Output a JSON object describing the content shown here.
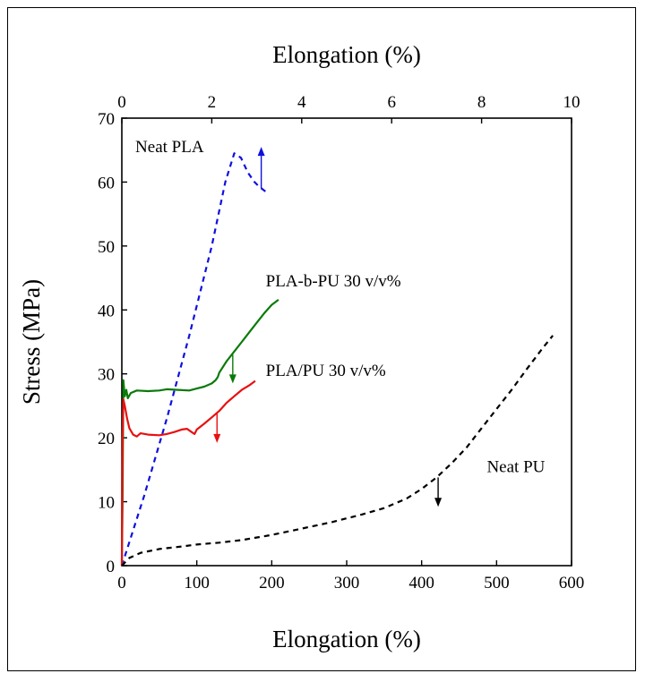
{
  "chart_data": {
    "type": "line",
    "xlabel": "Elongation (%)",
    "top_xlabel": "Elongation (%)",
    "ylabel": "Stress (MPa)",
    "xlim": [
      0,
      600
    ],
    "top_xlim": [
      0,
      10
    ],
    "ylim": [
      0,
      70
    ],
    "x_ticks": [
      0,
      100,
      200,
      300,
      400,
      500,
      600
    ],
    "top_x_ticks": [
      0,
      2,
      4,
      6,
      8,
      10
    ],
    "y_ticks": [
      0,
      10,
      20,
      30,
      40,
      50,
      60,
      70
    ],
    "grid": false,
    "series": [
      {
        "name": "Neat PLA",
        "axis": "top",
        "color": "#1010e0",
        "dash": "dashed",
        "label_pos": [
          0.3,
          65.5
        ],
        "points": [
          [
            0,
            0
          ],
          [
            0.5,
            11
          ],
          [
            1,
            23
          ],
          [
            1.5,
            36
          ],
          [
            2,
            50
          ],
          [
            2.3,
            60
          ],
          [
            2.5,
            64.5
          ],
          [
            2.65,
            63.8
          ],
          [
            2.8,
            61.5
          ],
          [
            2.95,
            60
          ],
          [
            3.05,
            59.3
          ],
          [
            3.2,
            58.5
          ]
        ],
        "arrow": [
          3.1,
          59,
          65.5
        ]
      },
      {
        "name": "PLA-b-PU 30 v/v%",
        "axis": "bottom",
        "color": "#0a7a0a",
        "dash": "solid",
        "label_pos": [
          192,
          44.5
        ],
        "points": [
          [
            0,
            0
          ],
          [
            1,
            10
          ],
          [
            2,
            29
          ],
          [
            4,
            26.5
          ],
          [
            6,
            27.5
          ],
          [
            8,
            26.2
          ],
          [
            12,
            27
          ],
          [
            20,
            27.4
          ],
          [
            35,
            27.3
          ],
          [
            50,
            27.4
          ],
          [
            60,
            27.6
          ],
          [
            75,
            27.5
          ],
          [
            90,
            27.4
          ],
          [
            100,
            27.7
          ],
          [
            110,
            28
          ],
          [
            120,
            28.5
          ],
          [
            125,
            29
          ],
          [
            128,
            29.5
          ],
          [
            130,
            30.2
          ],
          [
            140,
            32
          ],
          [
            150,
            33.5
          ],
          [
            160,
            35
          ],
          [
            170,
            36.5
          ],
          [
            180,
            38
          ],
          [
            190,
            39.5
          ],
          [
            200,
            40.8
          ],
          [
            209,
            41.6
          ]
        ],
        "arrow": [
          148,
          33,
          28.5
        ]
      },
      {
        "name": "PLA/PU 30 v/v%",
        "axis": "bottom",
        "color": "#e81010",
        "dash": "solid",
        "label_pos": [
          192,
          30.5
        ],
        "points": [
          [
            0,
            0
          ],
          [
            1,
            20
          ],
          [
            2,
            26
          ],
          [
            4,
            25
          ],
          [
            7,
            23
          ],
          [
            10,
            21.5
          ],
          [
            15,
            20.5
          ],
          [
            20,
            20.2
          ],
          [
            25,
            20.7
          ],
          [
            35,
            20.5
          ],
          [
            50,
            20.4
          ],
          [
            60,
            20.6
          ],
          [
            70,
            20.9
          ],
          [
            80,
            21.3
          ],
          [
            87,
            21.4
          ],
          [
            93,
            20.9
          ],
          [
            97,
            20.6
          ],
          [
            100,
            21.3
          ],
          [
            110,
            22.2
          ],
          [
            120,
            23.2
          ],
          [
            130,
            24.2
          ],
          [
            140,
            25.5
          ],
          [
            150,
            26.5
          ],
          [
            160,
            27.5
          ],
          [
            170,
            28.2
          ],
          [
            178,
            28.9
          ]
        ],
        "arrow": [
          127,
          23.8,
          19.2
        ]
      },
      {
        "name": "Neat PU",
        "axis": "bottom",
        "color": "#000000",
        "dash": "dashed",
        "label_pos": [
          487,
          15.5
        ],
        "points": [
          [
            0,
            0
          ],
          [
            10,
            1.2
          ],
          [
            25,
            2
          ],
          [
            50,
            2.6
          ],
          [
            80,
            3
          ],
          [
            100,
            3.3
          ],
          [
            130,
            3.6
          ],
          [
            160,
            4
          ],
          [
            200,
            4.8
          ],
          [
            240,
            5.8
          ],
          [
            280,
            6.8
          ],
          [
            320,
            8
          ],
          [
            350,
            9
          ],
          [
            380,
            10.5
          ],
          [
            400,
            12
          ],
          [
            420,
            13.8
          ],
          [
            440,
            16
          ],
          [
            460,
            18.5
          ],
          [
            480,
            21.5
          ],
          [
            500,
            24.5
          ],
          [
            520,
            27.5
          ],
          [
            540,
            30.7
          ],
          [
            560,
            33.8
          ],
          [
            575,
            36
          ]
        ],
        "arrow": [
          422,
          13.8,
          9.2
        ]
      }
    ]
  }
}
